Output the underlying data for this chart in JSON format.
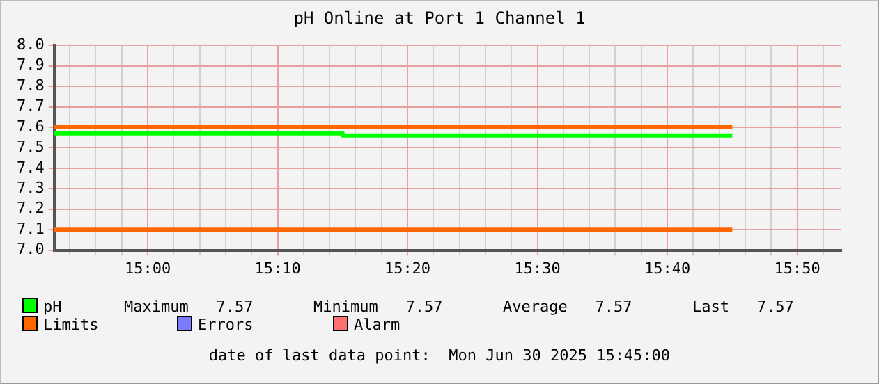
{
  "chart_data": {
    "type": "line",
    "title": "pH Online at Port 1 Channel 1",
    "series": [
      {
        "name": "pH",
        "type": "step",
        "color": "#00ff00",
        "x": [
          14.88,
          15.25,
          15.75
        ],
        "values": [
          7.57,
          7.56,
          7.56
        ]
      },
      {
        "name": "Limits",
        "color": "#ff6600",
        "x": [
          14.88,
          15.75
        ],
        "values": [
          7.6,
          7.6
        ]
      },
      {
        "color": "#ff6600",
        "x": [
          14.88,
          15.75
        ],
        "values": [
          7.1,
          7.1
        ]
      },
      {
        "name": "Errors",
        "color": "#7b7bff"
      },
      {
        "name": "Alarm",
        "color": "#ff7070"
      }
    ],
    "xlim": [
      14.88,
      15.89
    ],
    "xticks": [
      {
        "value": 14.9,
        "label": null
      },
      {
        "value": 14.9333,
        "label": null
      },
      {
        "value": 14.9667,
        "label": null
      },
      {
        "value": 15,
        "label": "15:00"
      },
      {
        "value": 15.0333,
        "label": null
      },
      {
        "value": 15.0667,
        "label": null
      },
      {
        "value": 15.1,
        "label": null
      },
      {
        "value": 15.1333,
        "label": null
      },
      {
        "value": 15.1667,
        "label": "15:10"
      },
      {
        "value": 15.2,
        "label": null
      },
      {
        "value": 15.2333,
        "label": null
      },
      {
        "value": 15.2667,
        "label": null
      },
      {
        "value": 15.3,
        "label": null
      },
      {
        "value": 15.3333,
        "label": "15:20"
      },
      {
        "value": 15.3667,
        "label": null
      },
      {
        "value": 15.4,
        "label": null
      },
      {
        "value": 15.4333,
        "label": null
      },
      {
        "value": 15.4667,
        "label": null
      },
      {
        "value": 15.5,
        "label": "15:30"
      },
      {
        "value": 15.5333,
        "label": null
      },
      {
        "value": 15.5667,
        "label": null
      },
      {
        "value": 15.6,
        "label": null
      },
      {
        "value": 15.6333,
        "label": null
      },
      {
        "value": 15.6667,
        "label": "15:40"
      },
      {
        "value": 15.7,
        "label": null
      },
      {
        "value": 15.7333,
        "label": null
      },
      {
        "value": 15.7667,
        "label": null
      },
      {
        "value": 15.8,
        "label": null
      },
      {
        "value": 15.8333,
        "label": "15:50"
      },
      {
        "value": 15.8667,
        "label": null
      }
    ],
    "ylim": [
      7.0,
      8.0
    ],
    "yticks": [
      {
        "value": 7,
        "label": "7.0"
      },
      {
        "value": 7.1,
        "label": "7.1"
      },
      {
        "value": 7.2,
        "label": "7.2"
      },
      {
        "value": 7.3,
        "label": "7.3"
      },
      {
        "value": 7.4,
        "label": "7.4"
      },
      {
        "value": 7.5,
        "label": "7.5"
      },
      {
        "value": 7.6,
        "label": "7.6"
      },
      {
        "value": 7.7,
        "label": "7.7"
      },
      {
        "value": 7.8,
        "label": "7.8"
      },
      {
        "value": 7.9,
        "label": "7.9"
      },
      {
        "value": 8,
        "label": "8.0"
      }
    ],
    "grid": true,
    "legend": "bottom",
    "marker": "none",
    "annotations": [
      "Maximum   7.57",
      "Minimum   7.57",
      "Average   7.57",
      "Last   7.57",
      "date of last data point:  Mon Jun 30 2025 15:45:00"
    ]
  }
}
